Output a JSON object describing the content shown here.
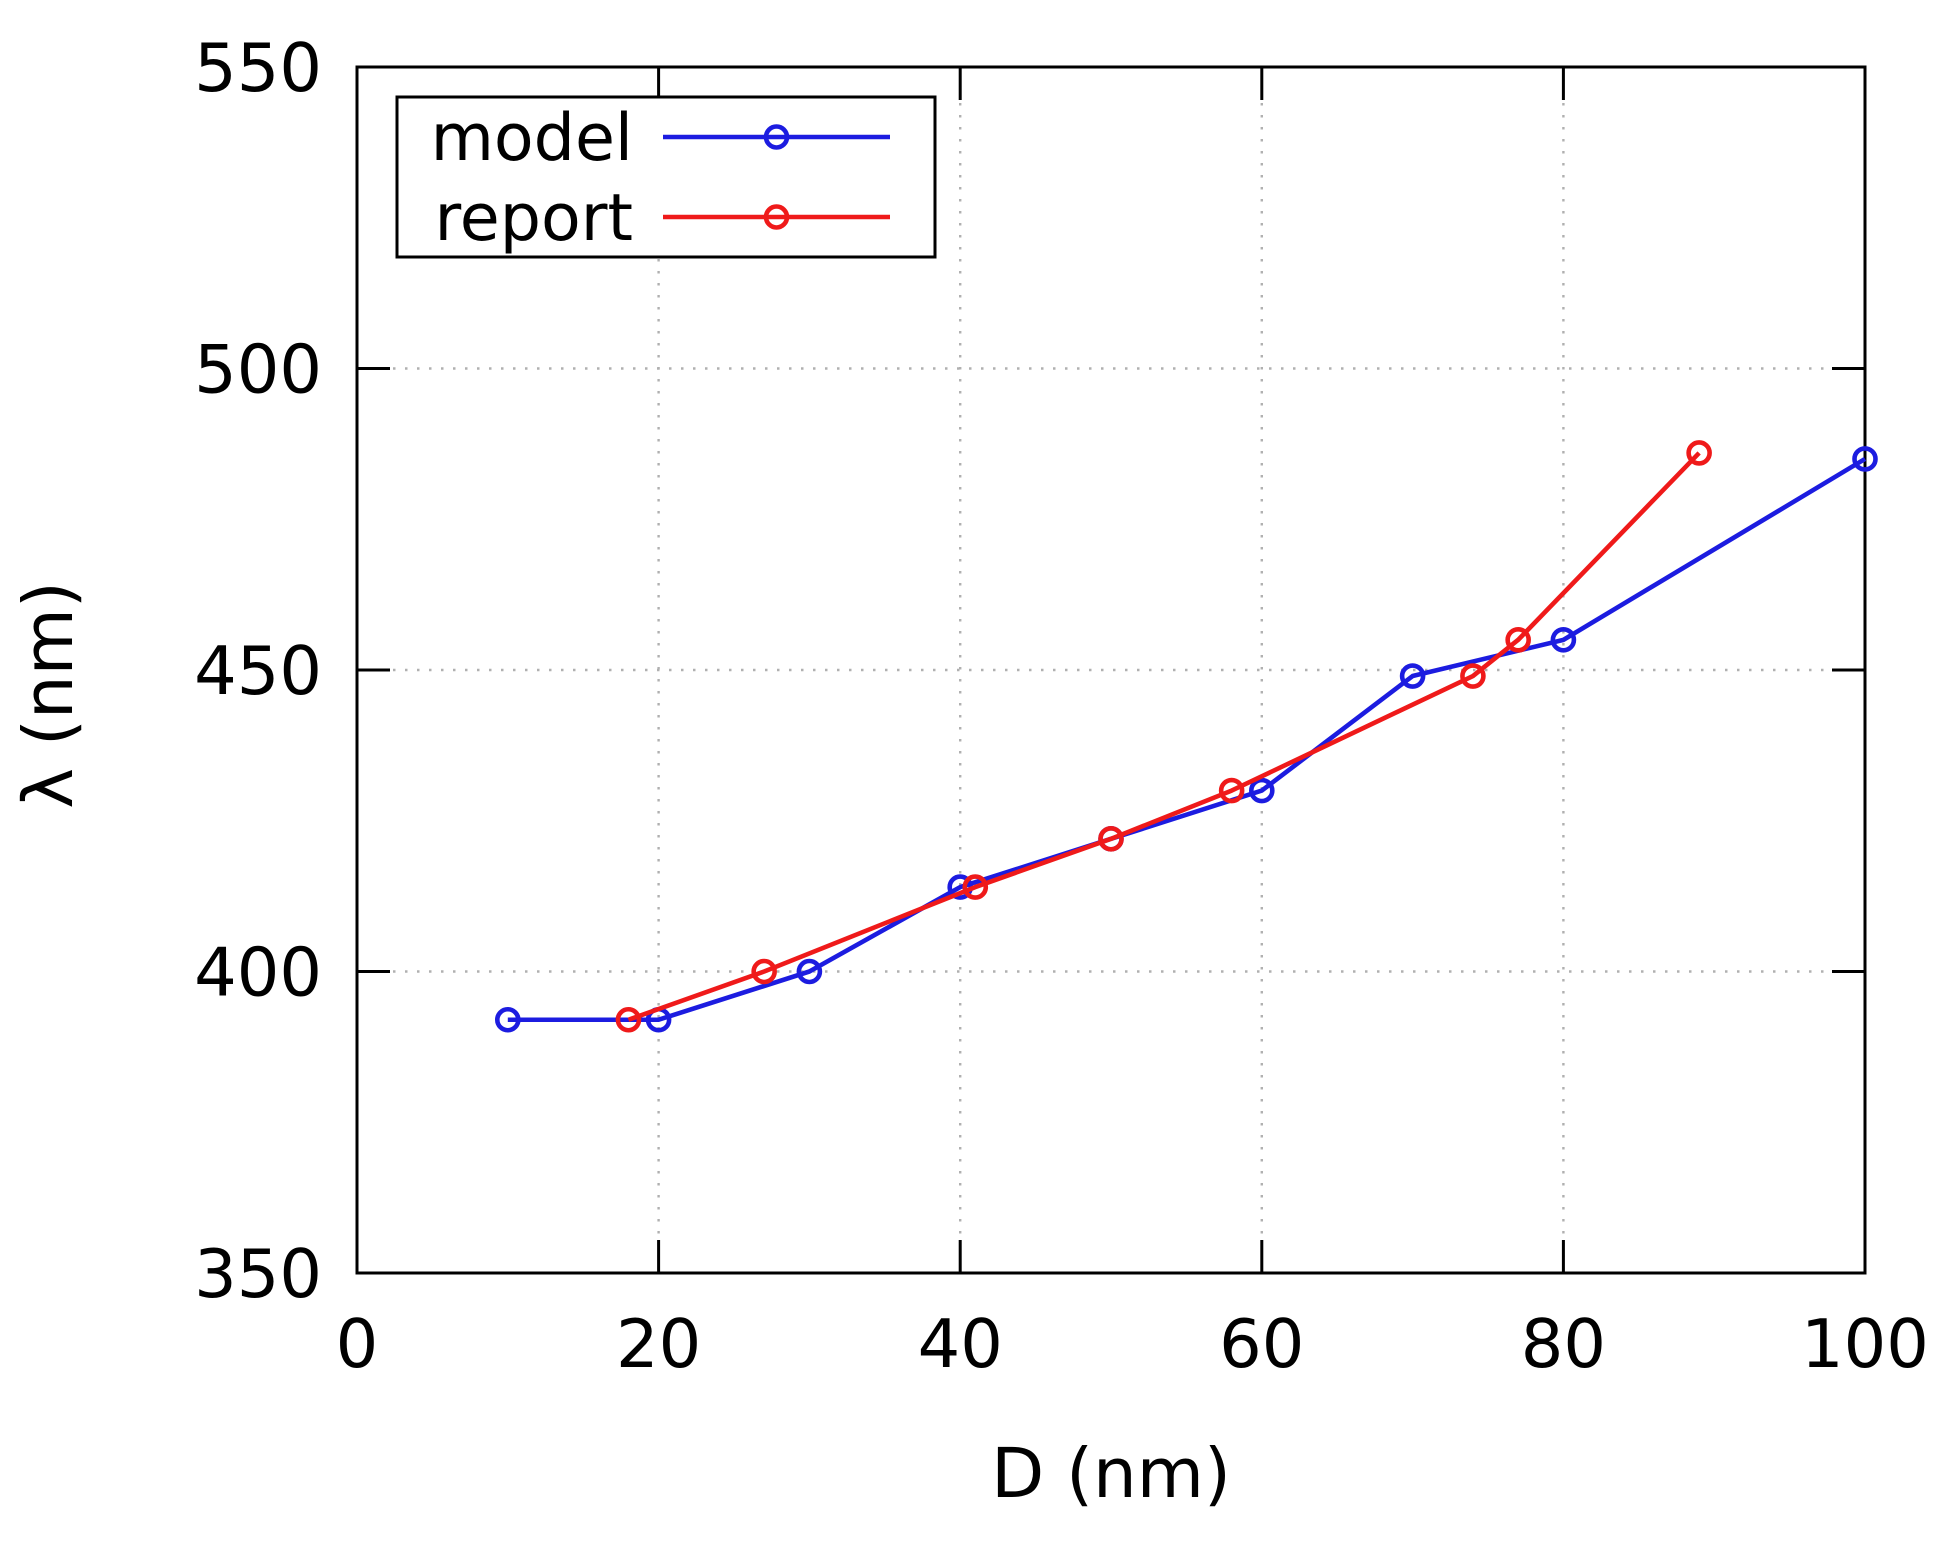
{
  "figure": {
    "background": "#ffffff",
    "grid_color": "#b0b0b0",
    "axis_color": "#000000"
  },
  "chart_data": {
    "type": "line",
    "title": "",
    "xlabel": "D (nm)",
    "ylabel": "λ (nm)",
    "xlim": [
      0,
      100
    ],
    "ylim": [
      350,
      550
    ],
    "xticks": [
      0,
      20,
      40,
      60,
      80,
      100
    ],
    "yticks": [
      350,
      400,
      450,
      500,
      550
    ],
    "grid": true,
    "legend_position": "top-left",
    "series": [
      {
        "name": "model",
        "color": "#1c1ce0",
        "marker": "open-circle",
        "points": [
          [
            10,
            392
          ],
          [
            20,
            392
          ],
          [
            30,
            400
          ],
          [
            40,
            414
          ],
          [
            50,
            422
          ],
          [
            60,
            430
          ],
          [
            70,
            449
          ],
          [
            80,
            455
          ],
          [
            100,
            485
          ]
        ]
      },
      {
        "name": "report",
        "color": "#ef1a1a",
        "marker": "open-circle",
        "points": [
          [
            18,
            392
          ],
          [
            27,
            400
          ],
          [
            41,
            414
          ],
          [
            50,
            422
          ],
          [
            58,
            430
          ],
          [
            74,
            449
          ],
          [
            77,
            455
          ],
          [
            89,
            486
          ]
        ]
      }
    ]
  }
}
